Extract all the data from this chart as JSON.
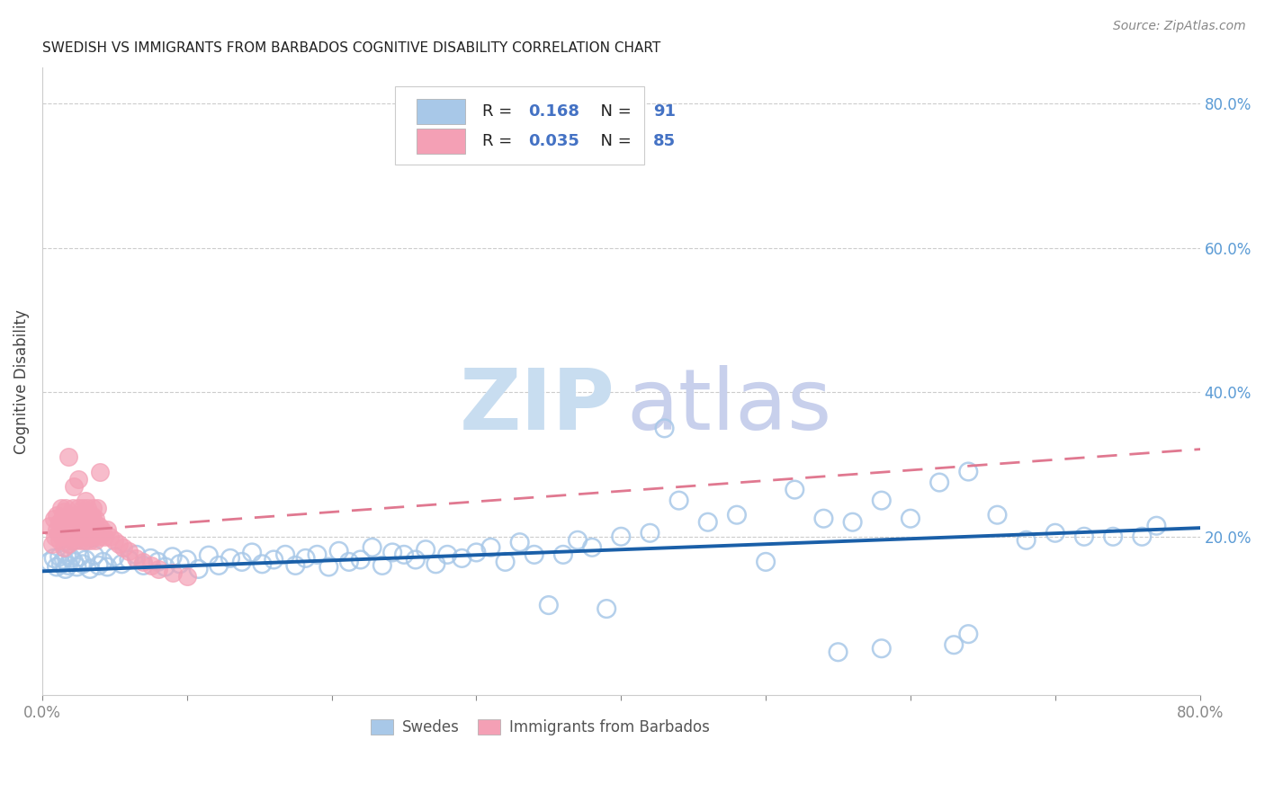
{
  "title": "SWEDISH VS IMMIGRANTS FROM BARBADOS COGNITIVE DISABILITY CORRELATION CHART",
  "source": "Source: ZipAtlas.com",
  "ylabel": "Cognitive Disability",
  "xlim": [
    0.0,
    0.8
  ],
  "ylim": [
    -0.02,
    0.85
  ],
  "swedes_R": 0.168,
  "swedes_N": 91,
  "barbados_R": 0.035,
  "barbados_N": 85,
  "swedes_color": "#a8c8e8",
  "barbados_color": "#f4a0b5",
  "swedes_edge_color": "#7ab0d8",
  "barbados_edge_color": "#e87090",
  "swedes_line_color": "#1a5fa8",
  "barbados_line_color": "#e07890",
  "background_color": "#ffffff",
  "swedes_line_intercept": 0.152,
  "swedes_line_slope": 0.075,
  "barbados_line_intercept": 0.205,
  "barbados_line_slope": 0.145,
  "watermark_zip_color": "#c8ddf0",
  "watermark_atlas_color": "#c8d0ec",
  "swedes_x": [
    0.005,
    0.008,
    0.01,
    0.012,
    0.013,
    0.015,
    0.016,
    0.017,
    0.018,
    0.02,
    0.022,
    0.024,
    0.026,
    0.028,
    0.03,
    0.033,
    0.036,
    0.039,
    0.042,
    0.045,
    0.05,
    0.055,
    0.06,
    0.065,
    0.07,
    0.075,
    0.08,
    0.085,
    0.09,
    0.095,
    0.1,
    0.108,
    0.115,
    0.122,
    0.13,
    0.138,
    0.145,
    0.152,
    0.16,
    0.168,
    0.175,
    0.182,
    0.19,
    0.198,
    0.205,
    0.212,
    0.22,
    0.228,
    0.235,
    0.242,
    0.25,
    0.258,
    0.265,
    0.272,
    0.28,
    0.29,
    0.3,
    0.31,
    0.32,
    0.33,
    0.34,
    0.35,
    0.36,
    0.37,
    0.38,
    0.39,
    0.4,
    0.42,
    0.44,
    0.46,
    0.48,
    0.5,
    0.52,
    0.54,
    0.56,
    0.58,
    0.6,
    0.62,
    0.64,
    0.66,
    0.68,
    0.7,
    0.72,
    0.74,
    0.76,
    0.77,
    0.63,
    0.58,
    0.55,
    0.64,
    0.43
  ],
  "swedes_y": [
    0.165,
    0.17,
    0.158,
    0.172,
    0.162,
    0.168,
    0.155,
    0.174,
    0.16,
    0.17,
    0.165,
    0.158,
    0.172,
    0.162,
    0.168,
    0.155,
    0.174,
    0.16,
    0.165,
    0.158,
    0.172,
    0.162,
    0.168,
    0.175,
    0.16,
    0.17,
    0.165,
    0.158,
    0.172,
    0.162,
    0.168,
    0.155,
    0.174,
    0.16,
    0.17,
    0.165,
    0.178,
    0.162,
    0.168,
    0.175,
    0.16,
    0.17,
    0.175,
    0.158,
    0.18,
    0.165,
    0.168,
    0.185,
    0.16,
    0.178,
    0.175,
    0.168,
    0.182,
    0.162,
    0.175,
    0.17,
    0.178,
    0.185,
    0.165,
    0.192,
    0.175,
    0.105,
    0.175,
    0.195,
    0.185,
    0.1,
    0.2,
    0.205,
    0.25,
    0.22,
    0.23,
    0.165,
    0.265,
    0.225,
    0.22,
    0.25,
    0.225,
    0.275,
    0.29,
    0.23,
    0.195,
    0.205,
    0.2,
    0.2,
    0.2,
    0.215,
    0.05,
    0.045,
    0.04,
    0.065,
    0.35
  ],
  "barbados_x": [
    0.005,
    0.007,
    0.008,
    0.009,
    0.01,
    0.01,
    0.011,
    0.012,
    0.012,
    0.013,
    0.013,
    0.014,
    0.014,
    0.015,
    0.015,
    0.015,
    0.016,
    0.016,
    0.017,
    0.017,
    0.018,
    0.018,
    0.019,
    0.019,
    0.02,
    0.02,
    0.021,
    0.021,
    0.022,
    0.022,
    0.023,
    0.023,
    0.024,
    0.024,
    0.025,
    0.025,
    0.026,
    0.026,
    0.027,
    0.027,
    0.028,
    0.028,
    0.029,
    0.029,
    0.03,
    0.03,
    0.031,
    0.031,
    0.032,
    0.032,
    0.033,
    0.033,
    0.034,
    0.034,
    0.035,
    0.035,
    0.036,
    0.036,
    0.037,
    0.037,
    0.038,
    0.038,
    0.039,
    0.039,
    0.04,
    0.041,
    0.042,
    0.043,
    0.045,
    0.047,
    0.05,
    0.053,
    0.056,
    0.06,
    0.065,
    0.07,
    0.075,
    0.08,
    0.09,
    0.1,
    0.025,
    0.018,
    0.022,
    0.03,
    0.04
  ],
  "barbados_y": [
    0.215,
    0.19,
    0.225,
    0.2,
    0.23,
    0.21,
    0.205,
    0.195,
    0.22,
    0.21,
    0.24,
    0.2,
    0.225,
    0.185,
    0.215,
    0.235,
    0.21,
    0.24,
    0.2,
    0.22,
    0.19,
    0.23,
    0.21,
    0.215,
    0.195,
    0.225,
    0.205,
    0.24,
    0.21,
    0.2,
    0.22,
    0.195,
    0.215,
    0.23,
    0.2,
    0.24,
    0.205,
    0.22,
    0.195,
    0.225,
    0.21,
    0.24,
    0.2,
    0.215,
    0.195,
    0.225,
    0.205,
    0.24,
    0.21,
    0.2,
    0.22,
    0.195,
    0.215,
    0.23,
    0.2,
    0.24,
    0.205,
    0.22,
    0.195,
    0.225,
    0.21,
    0.24,
    0.2,
    0.215,
    0.205,
    0.21,
    0.205,
    0.2,
    0.21,
    0.2,
    0.195,
    0.19,
    0.185,
    0.18,
    0.17,
    0.165,
    0.16,
    0.155,
    0.15,
    0.145,
    0.28,
    0.31,
    0.27,
    0.25,
    0.29
  ]
}
